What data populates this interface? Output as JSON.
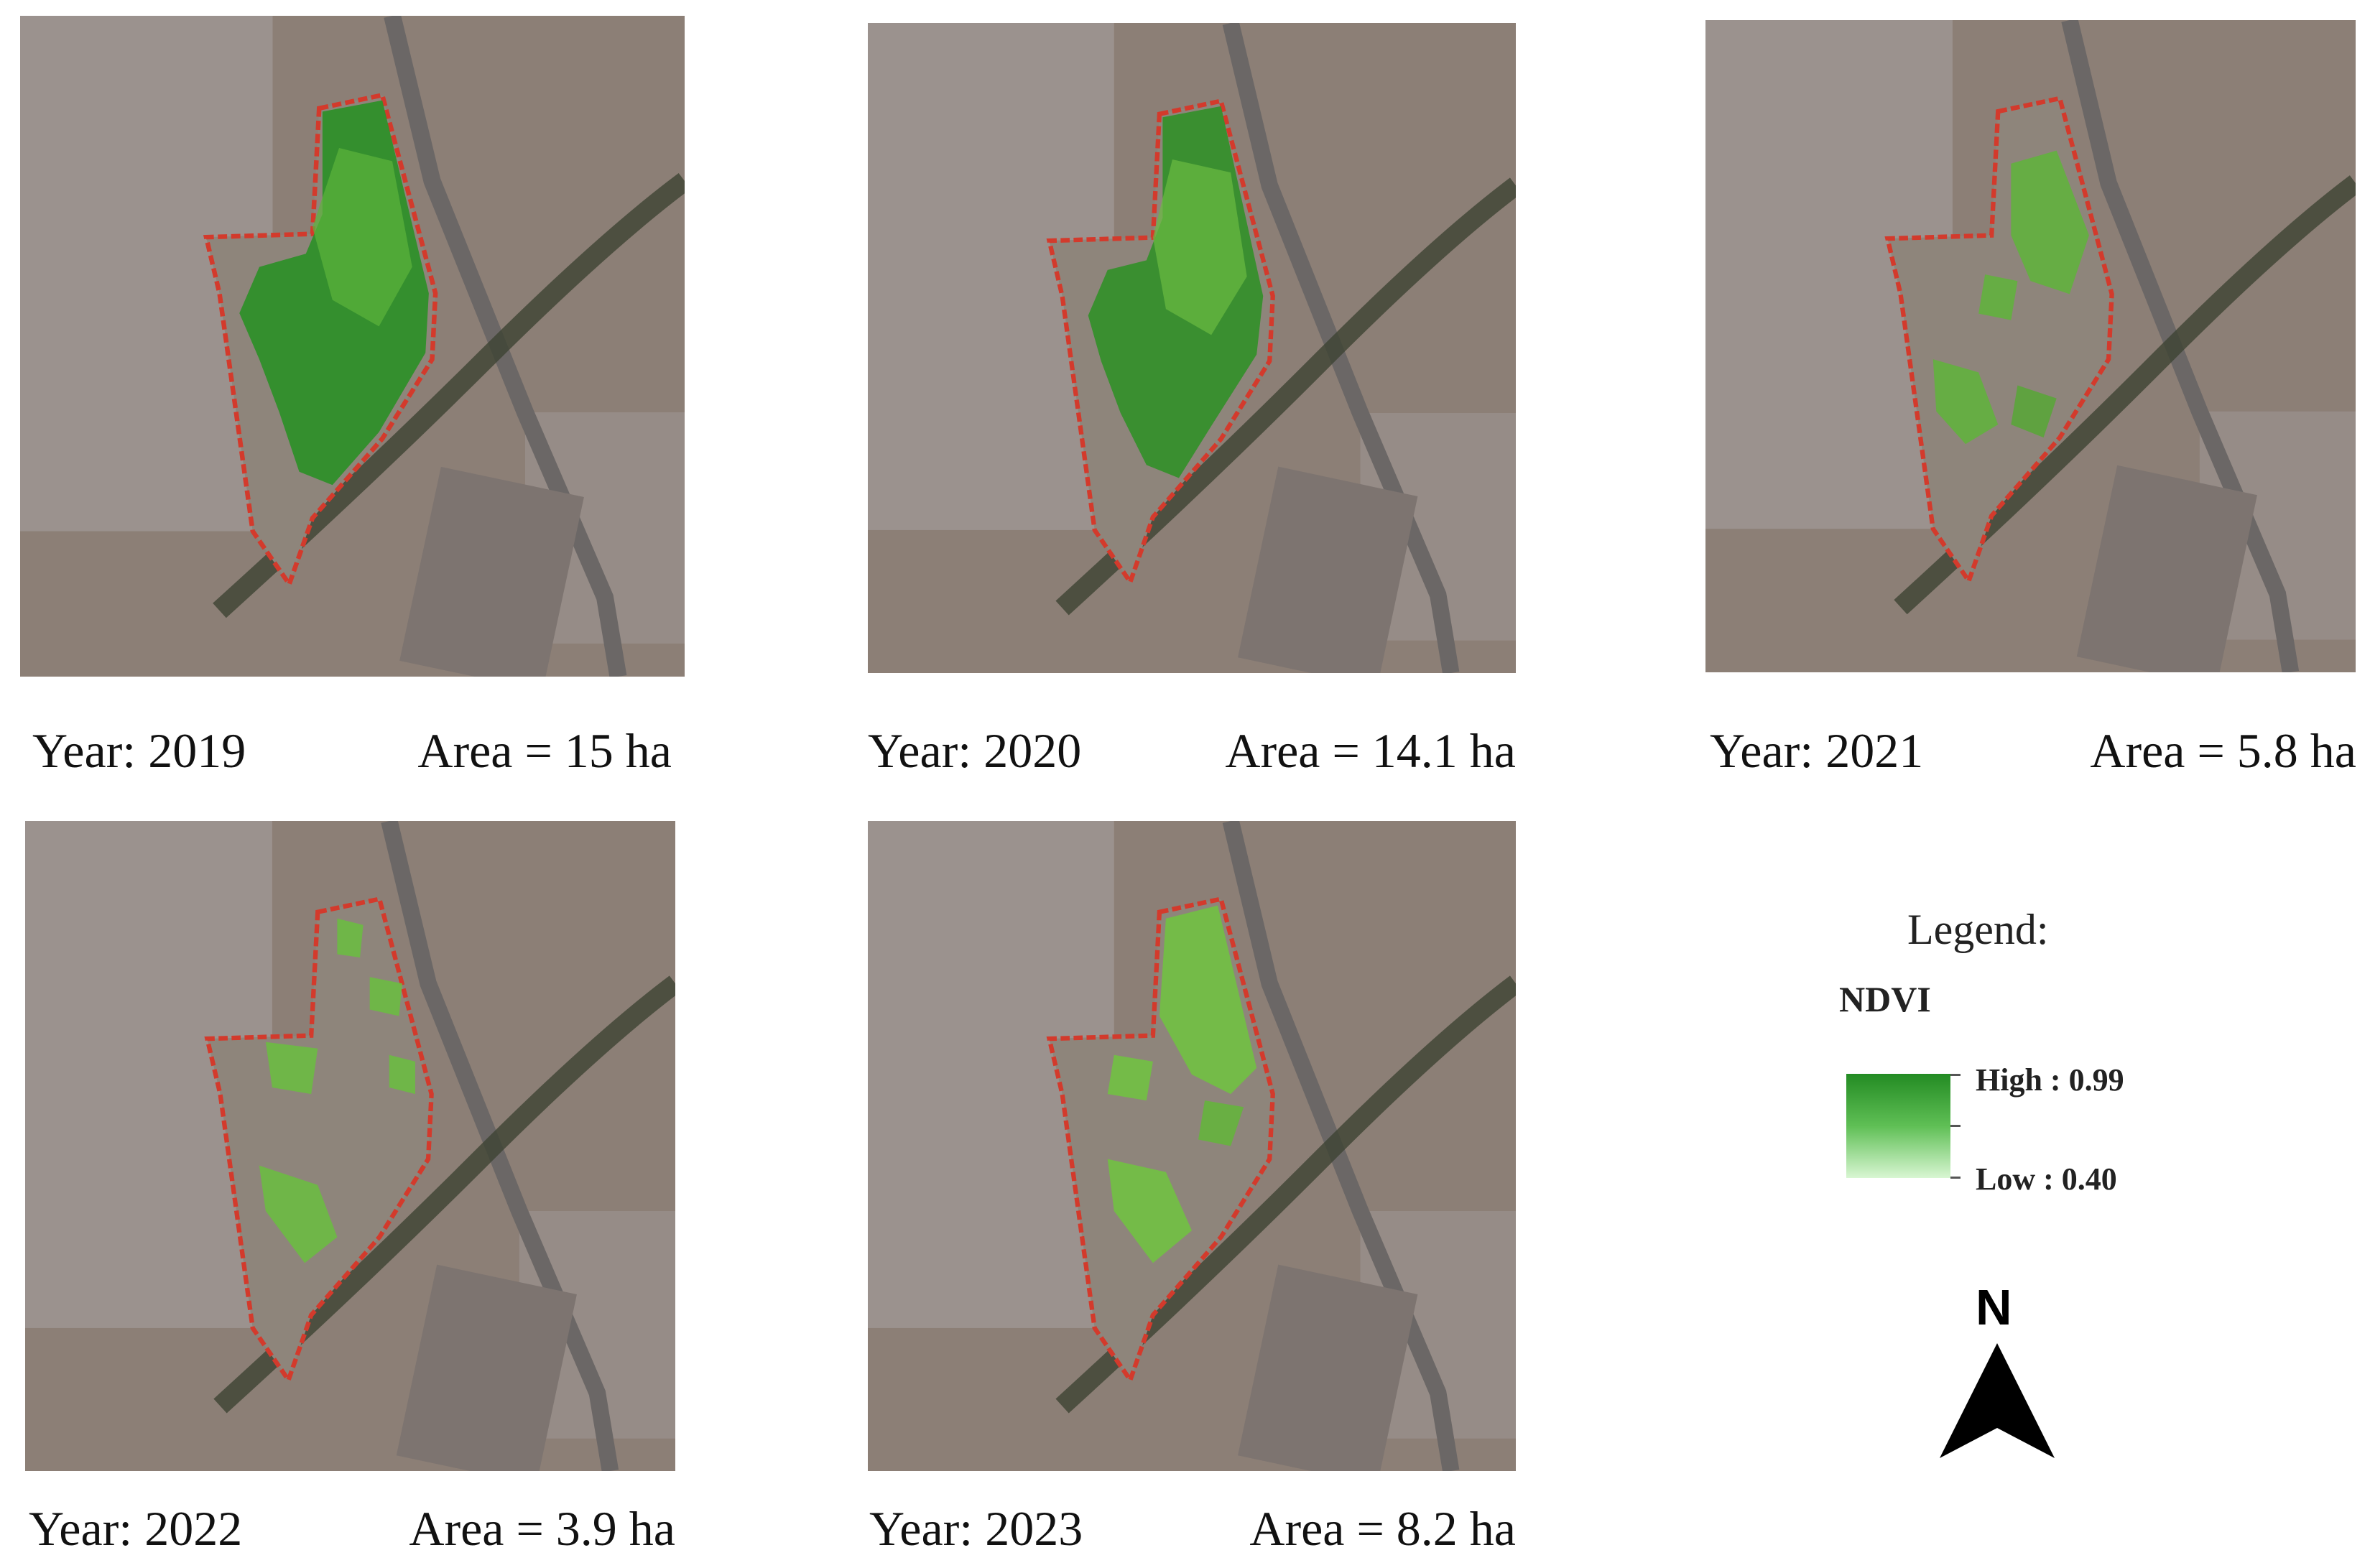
{
  "panels": [
    {
      "year_label": "Year: 2019",
      "area_label": "Area = 15 ha",
      "vegetation_cover": "high"
    },
    {
      "year_label": "Year: 2020",
      "area_label": "Area = 14.1 ha",
      "vegetation_cover": "high"
    },
    {
      "year_label": "Year: 2021",
      "area_label": "Area = 5.8 ha",
      "vegetation_cover": "low"
    },
    {
      "year_label": "Year: 2022",
      "area_label": "Area = 3.9 ha",
      "vegetation_cover": "very low"
    },
    {
      "year_label": "Year: 2023",
      "area_label": "Area = 8.2 ha",
      "vegetation_cover": "medium"
    }
  ],
  "legend": {
    "title": "Legend:",
    "variable": "NDVI",
    "high_label": "High : 0.99",
    "low_label": "Low : 0.40",
    "colors": {
      "high": "#238b23",
      "low": "#d8f6d2",
      "boundary": "#d33a2c"
    }
  },
  "north_arrow": {
    "label": "N",
    "icon": "north-arrow-icon"
  }
}
